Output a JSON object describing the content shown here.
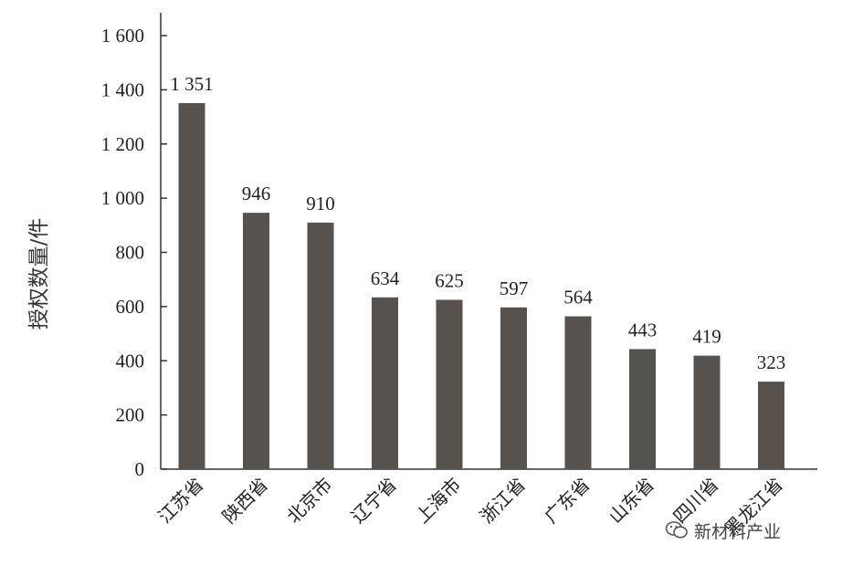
{
  "chart_data": {
    "type": "bar",
    "ylabel": "授权数量/件",
    "xlabel": "",
    "ylim": [
      0,
      1600
    ],
    "yticks": [
      "0",
      "200",
      "400",
      "600",
      "800",
      "1 000",
      "1 200",
      "1 400",
      "1 600"
    ],
    "yticks_values": [
      0,
      200,
      400,
      600,
      800,
      1000,
      1200,
      1400,
      1600
    ],
    "categories": [
      "江苏省",
      "陕西省",
      "北京市",
      "辽宁省",
      "上海市",
      "浙江省",
      "广东省",
      "山东省",
      "四川省",
      "黑龙江省"
    ],
    "values": [
      1351,
      946,
      910,
      634,
      625,
      597,
      564,
      443,
      419,
      323
    ],
    "data_labels": [
      "1 351",
      "946",
      "910",
      "634",
      "625",
      "597",
      "564",
      "443",
      "419",
      "323"
    ],
    "bar_color": "#58524f",
    "grid": false
  },
  "watermark": {
    "icon": "wechat-icon",
    "text": "新材料产业"
  }
}
